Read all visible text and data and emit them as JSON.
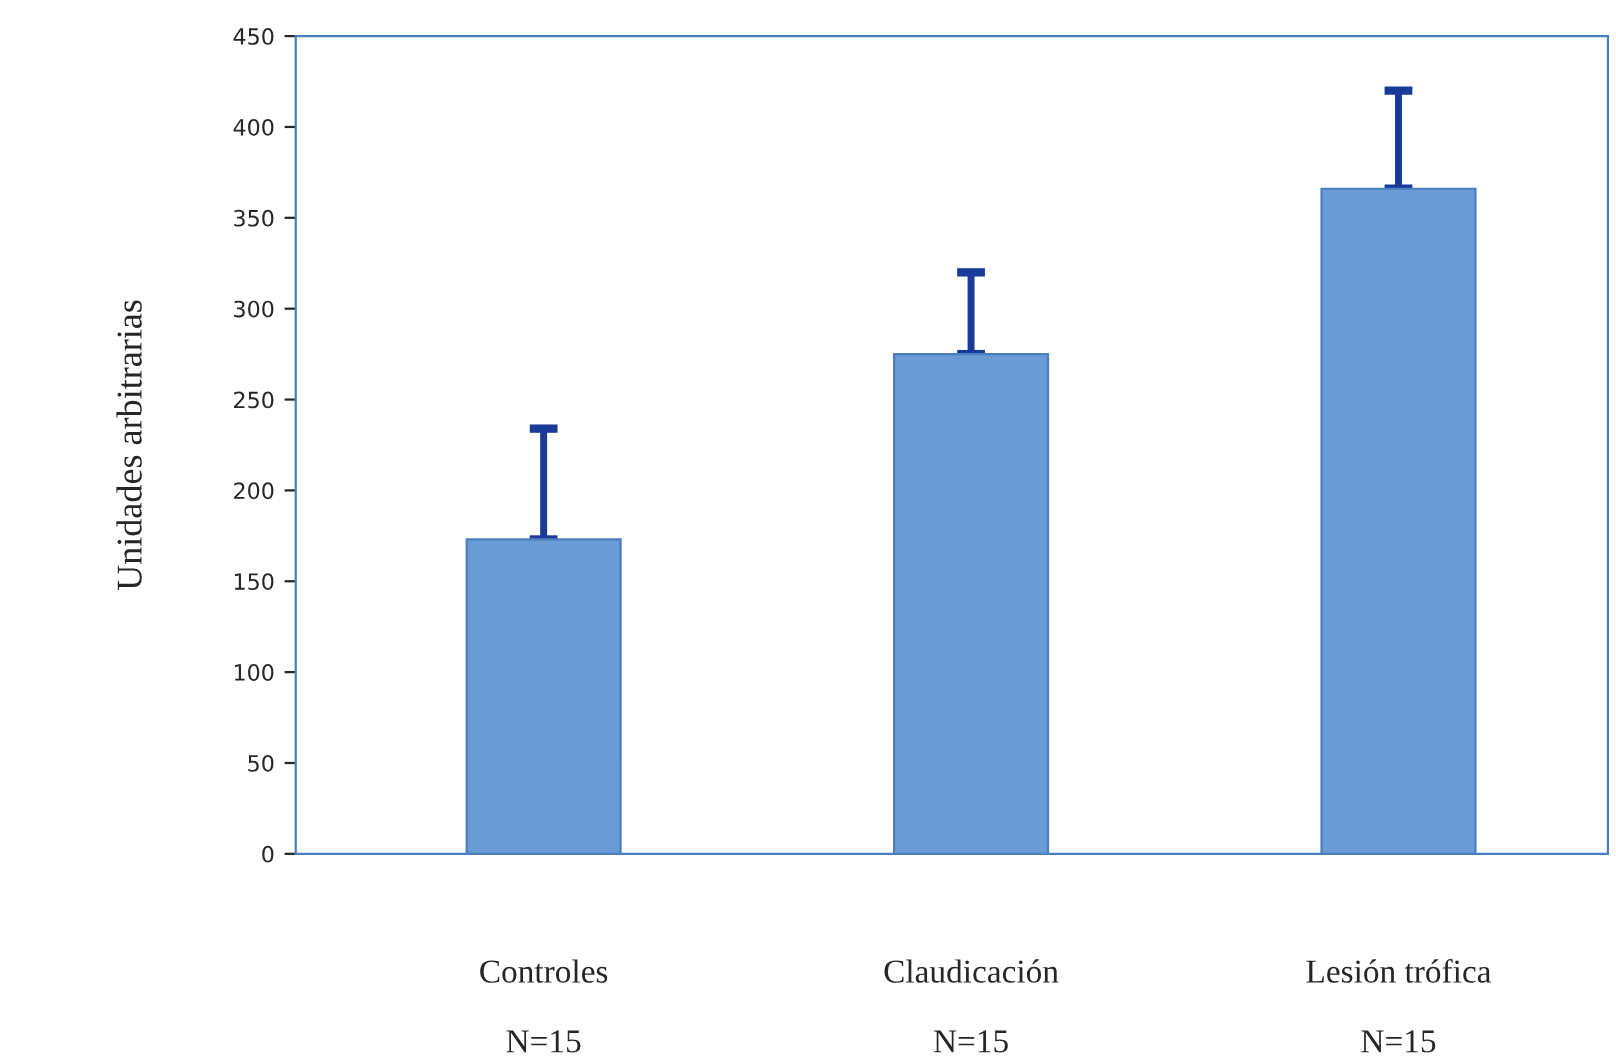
{
  "chart_data": {
    "type": "bar",
    "ylabel": "Unidades arbitrarias",
    "categories": [
      "Controles\n\nN=15",
      "Claudicación\n\nN=15",
      "Lesión trófica\n\nN=15"
    ],
    "series": [
      {
        "color": "#6a9bd4",
        "values": [
          173,
          275,
          366
        ],
        "errors": [
          [
            173,
            234
          ],
          [
            275,
            320
          ],
          [
            366,
            420
          ]
        ]
      }
    ],
    "ylim": [
      0,
      450
    ],
    "yticks": [
      0,
      50,
      100,
      150,
      200,
      250,
      300,
      350,
      400,
      450
    ],
    "grid": false,
    "legend": false
  }
}
